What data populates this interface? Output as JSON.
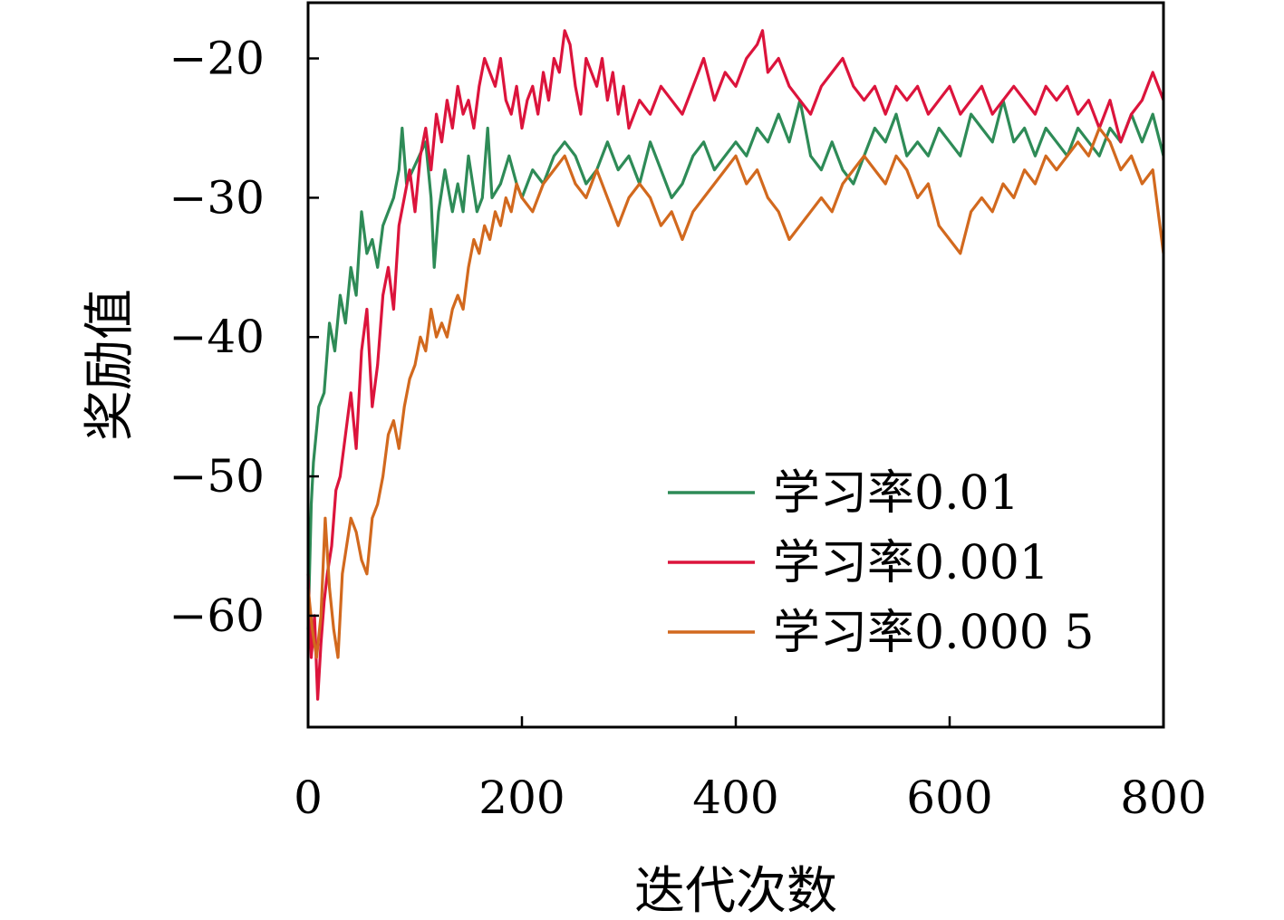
{
  "chart_data": {
    "type": "line",
    "title": "",
    "xlabel": "迭代次数",
    "ylabel": "奖励值",
    "xlim": [
      0,
      800
    ],
    "ylim": [
      -68,
      -16
    ],
    "x_ticks": [
      0,
      200,
      400,
      600,
      800
    ],
    "x_tick_labels": [
      "0",
      "200",
      "400",
      "600",
      "800"
    ],
    "y_ticks": [
      -20,
      -30,
      -40,
      -50,
      -60
    ],
    "y_tick_labels": [
      "−20",
      "−30",
      "−40",
      "−50",
      "−60"
    ],
    "grid": false,
    "legend_position": "bottom-right",
    "series": [
      {
        "name": "学习率0.01",
        "color": "#2e8b57",
        "points": [
          [
            0,
            -61
          ],
          [
            3,
            -52
          ],
          [
            5,
            -49
          ],
          [
            10,
            -45
          ],
          [
            15,
            -44
          ],
          [
            20,
            -39
          ],
          [
            25,
            -41
          ],
          [
            30,
            -37
          ],
          [
            35,
            -39
          ],
          [
            40,
            -35
          ],
          [
            45,
            -37
          ],
          [
            50,
            -31
          ],
          [
            55,
            -34
          ],
          [
            60,
            -33
          ],
          [
            65,
            -35
          ],
          [
            70,
            -32
          ],
          [
            75,
            -31
          ],
          [
            80,
            -30
          ],
          [
            85,
            -28
          ],
          [
            88,
            -25
          ],
          [
            92,
            -29
          ],
          [
            98,
            -28
          ],
          [
            104,
            -27
          ],
          [
            110,
            -26
          ],
          [
            115,
            -30
          ],
          [
            118,
            -35
          ],
          [
            122,
            -31
          ],
          [
            128,
            -28
          ],
          [
            135,
            -31
          ],
          [
            140,
            -29
          ],
          [
            145,
            -31
          ],
          [
            150,
            -27
          ],
          [
            158,
            -31
          ],
          [
            163,
            -30
          ],
          [
            168,
            -25
          ],
          [
            172,
            -30
          ],
          [
            180,
            -29
          ],
          [
            188,
            -27
          ],
          [
            195,
            -29
          ],
          [
            200,
            -30
          ],
          [
            210,
            -28
          ],
          [
            220,
            -29
          ],
          [
            230,
            -27
          ],
          [
            240,
            -26
          ],
          [
            250,
            -27
          ],
          [
            260,
            -29
          ],
          [
            270,
            -28
          ],
          [
            280,
            -26
          ],
          [
            290,
            -28
          ],
          [
            300,
            -27
          ],
          [
            310,
            -29
          ],
          [
            320,
            -26
          ],
          [
            330,
            -28
          ],
          [
            340,
            -30
          ],
          [
            350,
            -29
          ],
          [
            360,
            -27
          ],
          [
            370,
            -26
          ],
          [
            380,
            -28
          ],
          [
            390,
            -27
          ],
          [
            400,
            -26
          ],
          [
            410,
            -27
          ],
          [
            420,
            -25
          ],
          [
            430,
            -26
          ],
          [
            440,
            -24
          ],
          [
            450,
            -26
          ],
          [
            460,
            -23
          ],
          [
            470,
            -27
          ],
          [
            480,
            -28
          ],
          [
            490,
            -26
          ],
          [
            500,
            -28
          ],
          [
            510,
            -29
          ],
          [
            520,
            -27
          ],
          [
            530,
            -25
          ],
          [
            540,
            -26
          ],
          [
            550,
            -24
          ],
          [
            560,
            -27
          ],
          [
            570,
            -26
          ],
          [
            580,
            -27
          ],
          [
            590,
            -25
          ],
          [
            600,
            -26
          ],
          [
            610,
            -27
          ],
          [
            620,
            -24
          ],
          [
            630,
            -25
          ],
          [
            640,
            -26
          ],
          [
            650,
            -23
          ],
          [
            660,
            -26
          ],
          [
            670,
            -25
          ],
          [
            680,
            -27
          ],
          [
            690,
            -25
          ],
          [
            700,
            -26
          ],
          [
            710,
            -27
          ],
          [
            720,
            -25
          ],
          [
            730,
            -26
          ],
          [
            740,
            -27
          ],
          [
            750,
            -25
          ],
          [
            760,
            -26
          ],
          [
            770,
            -24
          ],
          [
            780,
            -26
          ],
          [
            790,
            -24
          ],
          [
            800,
            -27
          ]
        ]
      },
      {
        "name": "学习率0.001",
        "color": "#dc143c",
        "points": [
          [
            0,
            -57
          ],
          [
            3,
            -63
          ],
          [
            6,
            -60
          ],
          [
            9,
            -66
          ],
          [
            12,
            -62
          ],
          [
            15,
            -59
          ],
          [
            18,
            -57
          ],
          [
            22,
            -55
          ],
          [
            26,
            -51
          ],
          [
            30,
            -50
          ],
          [
            35,
            -47
          ],
          [
            40,
            -44
          ],
          [
            45,
            -48
          ],
          [
            50,
            -41
          ],
          [
            55,
            -38
          ],
          [
            60,
            -45
          ],
          [
            65,
            -42
          ],
          [
            70,
            -37
          ],
          [
            75,
            -35
          ],
          [
            80,
            -38
          ],
          [
            85,
            -32
          ],
          [
            90,
            -30
          ],
          [
            95,
            -28
          ],
          [
            100,
            -31
          ],
          [
            105,
            -27
          ],
          [
            110,
            -25
          ],
          [
            115,
            -28
          ],
          [
            120,
            -24
          ],
          [
            125,
            -26
          ],
          [
            130,
            -23
          ],
          [
            135,
            -25
          ],
          [
            140,
            -22
          ],
          [
            145,
            -24
          ],
          [
            150,
            -23
          ],
          [
            155,
            -25
          ],
          [
            160,
            -22
          ],
          [
            165,
            -20
          ],
          [
            170,
            -21
          ],
          [
            175,
            -22
          ],
          [
            180,
            -20
          ],
          [
            185,
            -23
          ],
          [
            190,
            -24
          ],
          [
            195,
            -22
          ],
          [
            200,
            -25
          ],
          [
            205,
            -23
          ],
          [
            210,
            -22
          ],
          [
            215,
            -24
          ],
          [
            220,
            -21
          ],
          [
            225,
            -23
          ],
          [
            230,
            -20
          ],
          [
            235,
            -21
          ],
          [
            240,
            -18
          ],
          [
            245,
            -19
          ],
          [
            250,
            -22
          ],
          [
            255,
            -24
          ],
          [
            260,
            -20
          ],
          [
            265,
            -21
          ],
          [
            270,
            -22
          ],
          [
            275,
            -20
          ],
          [
            280,
            -23
          ],
          [
            285,
            -21
          ],
          [
            290,
            -24
          ],
          [
            295,
            -22
          ],
          [
            300,
            -25
          ],
          [
            310,
            -23
          ],
          [
            320,
            -24
          ],
          [
            330,
            -22
          ],
          [
            340,
            -23
          ],
          [
            350,
            -24
          ],
          [
            360,
            -22
          ],
          [
            370,
            -20
          ],
          [
            380,
            -23
          ],
          [
            390,
            -21
          ],
          [
            400,
            -22
          ],
          [
            410,
            -20
          ],
          [
            420,
            -19
          ],
          [
            425,
            -18
          ],
          [
            430,
            -21
          ],
          [
            440,
            -20
          ],
          [
            450,
            -22
          ],
          [
            460,
            -23
          ],
          [
            470,
            -24
          ],
          [
            480,
            -22
          ],
          [
            490,
            -21
          ],
          [
            500,
            -20
          ],
          [
            510,
            -22
          ],
          [
            520,
            -23
          ],
          [
            530,
            -22
          ],
          [
            540,
            -24
          ],
          [
            550,
            -22
          ],
          [
            560,
            -23
          ],
          [
            570,
            -22
          ],
          [
            580,
            -24
          ],
          [
            590,
            -23
          ],
          [
            600,
            -22
          ],
          [
            610,
            -24
          ],
          [
            620,
            -23
          ],
          [
            630,
            -22
          ],
          [
            640,
            -24
          ],
          [
            650,
            -23
          ],
          [
            660,
            -22
          ],
          [
            670,
            -23
          ],
          [
            680,
            -24
          ],
          [
            690,
            -22
          ],
          [
            700,
            -23
          ],
          [
            710,
            -22
          ],
          [
            720,
            -24
          ],
          [
            730,
            -23
          ],
          [
            740,
            -25
          ],
          [
            750,
            -23
          ],
          [
            760,
            -26
          ],
          [
            770,
            -24
          ],
          [
            780,
            -23
          ],
          [
            790,
            -21
          ],
          [
            800,
            -23
          ]
        ]
      },
      {
        "name": "学习率0.000 5",
        "color": "#d2691e",
        "points": [
          [
            0,
            -58
          ],
          [
            4,
            -61
          ],
          [
            8,
            -63
          ],
          [
            12,
            -60
          ],
          [
            16,
            -53
          ],
          [
            20,
            -58
          ],
          [
            24,
            -61
          ],
          [
            28,
            -63
          ],
          [
            32,
            -57
          ],
          [
            36,
            -55
          ],
          [
            40,
            -53
          ],
          [
            45,
            -54
          ],
          [
            50,
            -56
          ],
          [
            55,
            -57
          ],
          [
            60,
            -53
          ],
          [
            65,
            -52
          ],
          [
            70,
            -50
          ],
          [
            75,
            -47
          ],
          [
            80,
            -46
          ],
          [
            85,
            -48
          ],
          [
            90,
            -45
          ],
          [
            95,
            -43
          ],
          [
            100,
            -42
          ],
          [
            105,
            -40
          ],
          [
            110,
            -41
          ],
          [
            115,
            -38
          ],
          [
            120,
            -40
          ],
          [
            125,
            -39
          ],
          [
            130,
            -40
          ],
          [
            135,
            -38
          ],
          [
            140,
            -37
          ],
          [
            145,
            -38
          ],
          [
            150,
            -35
          ],
          [
            155,
            -33
          ],
          [
            160,
            -34
          ],
          [
            165,
            -32
          ],
          [
            170,
            -33
          ],
          [
            175,
            -31
          ],
          [
            180,
            -32
          ],
          [
            185,
            -30
          ],
          [
            190,
            -31
          ],
          [
            195,
            -29
          ],
          [
            200,
            -30
          ],
          [
            210,
            -31
          ],
          [
            220,
            -29
          ],
          [
            230,
            -28
          ],
          [
            240,
            -27
          ],
          [
            250,
            -29
          ],
          [
            260,
            -30
          ],
          [
            270,
            -28
          ],
          [
            280,
            -30
          ],
          [
            290,
            -32
          ],
          [
            300,
            -30
          ],
          [
            310,
            -29
          ],
          [
            320,
            -30
          ],
          [
            330,
            -32
          ],
          [
            340,
            -31
          ],
          [
            350,
            -33
          ],
          [
            360,
            -31
          ],
          [
            370,
            -30
          ],
          [
            380,
            -29
          ],
          [
            390,
            -28
          ],
          [
            400,
            -27
          ],
          [
            410,
            -29
          ],
          [
            420,
            -28
          ],
          [
            430,
            -30
          ],
          [
            440,
            -31
          ],
          [
            450,
            -33
          ],
          [
            460,
            -32
          ],
          [
            470,
            -31
          ],
          [
            480,
            -30
          ],
          [
            490,
            -31
          ],
          [
            500,
            -29
          ],
          [
            510,
            -28
          ],
          [
            520,
            -27
          ],
          [
            530,
            -28
          ],
          [
            540,
            -29
          ],
          [
            550,
            -27
          ],
          [
            560,
            -28
          ],
          [
            570,
            -30
          ],
          [
            580,
            -29
          ],
          [
            590,
            -32
          ],
          [
            600,
            -33
          ],
          [
            610,
            -34
          ],
          [
            620,
            -31
          ],
          [
            630,
            -30
          ],
          [
            640,
            -31
          ],
          [
            650,
            -29
          ],
          [
            660,
            -30
          ],
          [
            670,
            -28
          ],
          [
            680,
            -29
          ],
          [
            690,
            -27
          ],
          [
            700,
            -28
          ],
          [
            710,
            -27
          ],
          [
            720,
            -26
          ],
          [
            730,
            -27
          ],
          [
            740,
            -25
          ],
          [
            750,
            -26
          ],
          [
            760,
            -28
          ],
          [
            770,
            -27
          ],
          [
            780,
            -29
          ],
          [
            790,
            -28
          ],
          [
            800,
            -34
          ]
        ]
      }
    ]
  }
}
